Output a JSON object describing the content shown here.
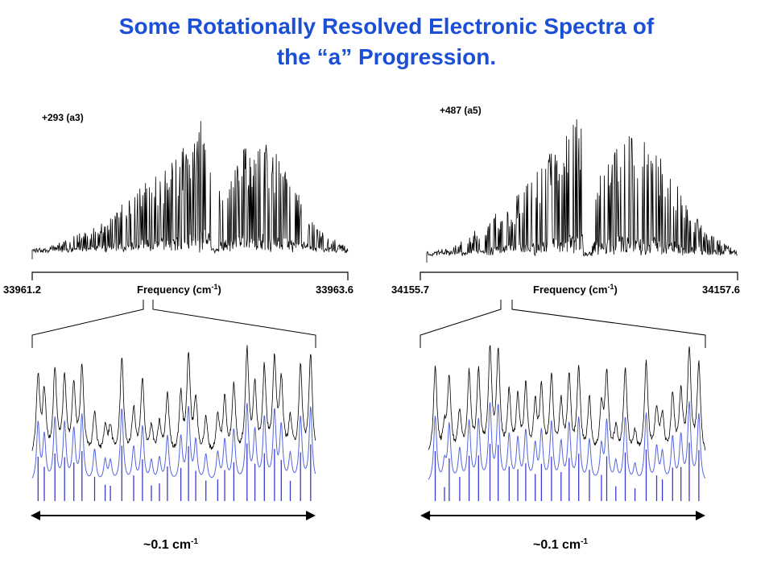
{
  "slide": {
    "title_line1": "Some Rotationally Resolved Electronic Spectra of",
    "title_line2": "the “a” Progression."
  },
  "chart_data": [
    {
      "type": "line",
      "band_label": "+293 (a3)",
      "xlabel": "Frequency (cm",
      "xlabel_unit_sup": "-1",
      "xlim": [
        33961.2,
        33963.6
      ],
      "tick_left": "33961.2",
      "tick_right": "33963.6"
    },
    {
      "type": "line",
      "band_label": "+487 (a5)",
      "xlabel": "Frequency (cm",
      "xlabel_unit_sup": "-1",
      "xlim": [
        34155.7,
        34157.6
      ],
      "tick_left": "34155.7",
      "tick_right": "34157.6"
    },
    {
      "type": "line",
      "series": [
        {
          "color": "#000000"
        },
        {
          "color": "#4a5bd8"
        }
      ],
      "scale_label": "~0.1 cm",
      "scale_sup": "-1"
    },
    {
      "type": "line",
      "series": [
        {
          "color": "#000000"
        },
        {
          "color": "#4a5bd8"
        }
      ],
      "scale_label": "~0.1 cm",
      "scale_sup": "-1"
    }
  ]
}
